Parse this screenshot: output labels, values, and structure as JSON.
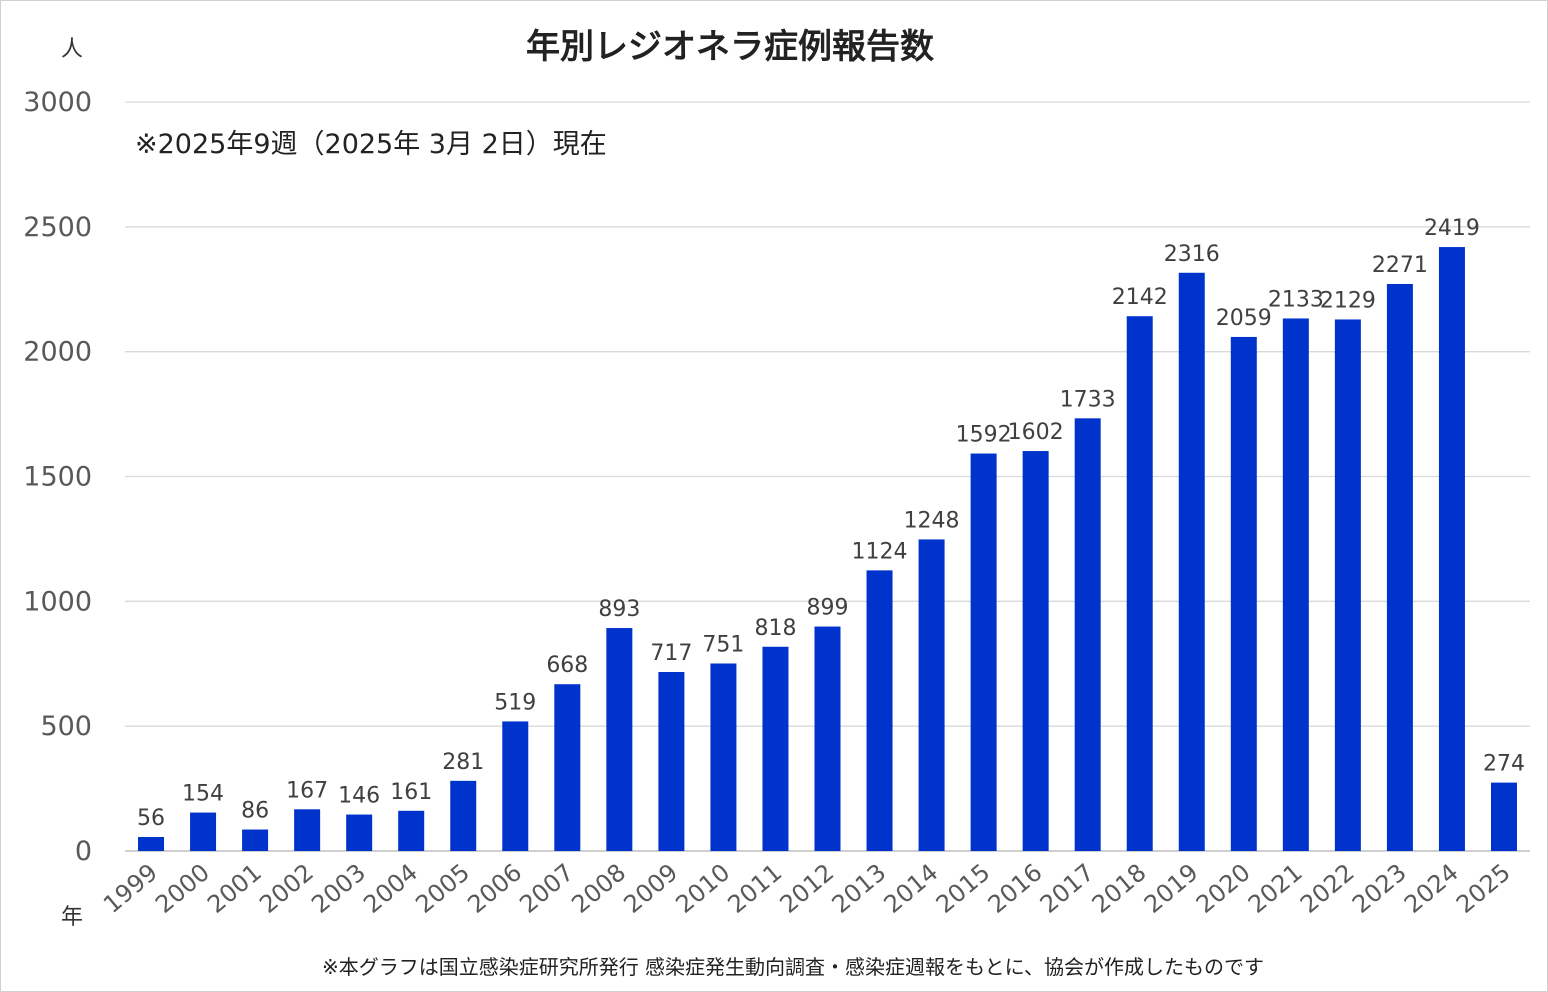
{
  "chart_data": {
    "type": "bar",
    "title": "年別レジオネラ症例報告数",
    "ylabel": "人",
    "xlabel": "年",
    "note": "※2025年9週（2025年 3月 2日）現在",
    "source": "※本グラフは国立感染症研究所発行 感染症発生動向調査・感染症週報をもとに、協会が作成したものです",
    "categories": [
      "1999",
      "2000",
      "2001",
      "2002",
      "2003",
      "2004",
      "2005",
      "2006",
      "2007",
      "2008",
      "2009",
      "2010",
      "2011",
      "2012",
      "2013",
      "2014",
      "2015",
      "2016",
      "2017",
      "2018",
      "2019",
      "2020",
      "2021",
      "2022",
      "2023",
      "2024",
      "2025"
    ],
    "values": [
      56,
      154,
      86,
      167,
      146,
      161,
      281,
      519,
      668,
      893,
      717,
      751,
      818,
      899,
      1124,
      1248,
      1592,
      1602,
      1733,
      2142,
      2316,
      2059,
      2133,
      2129,
      2271,
      2419,
      274
    ],
    "ylim": [
      0,
      3000
    ],
    "yticks": [
      0,
      500,
      1000,
      1500,
      2000,
      2500,
      3000
    ],
    "grid": true,
    "legend": "none",
    "bar_color": "#0033CC"
  }
}
